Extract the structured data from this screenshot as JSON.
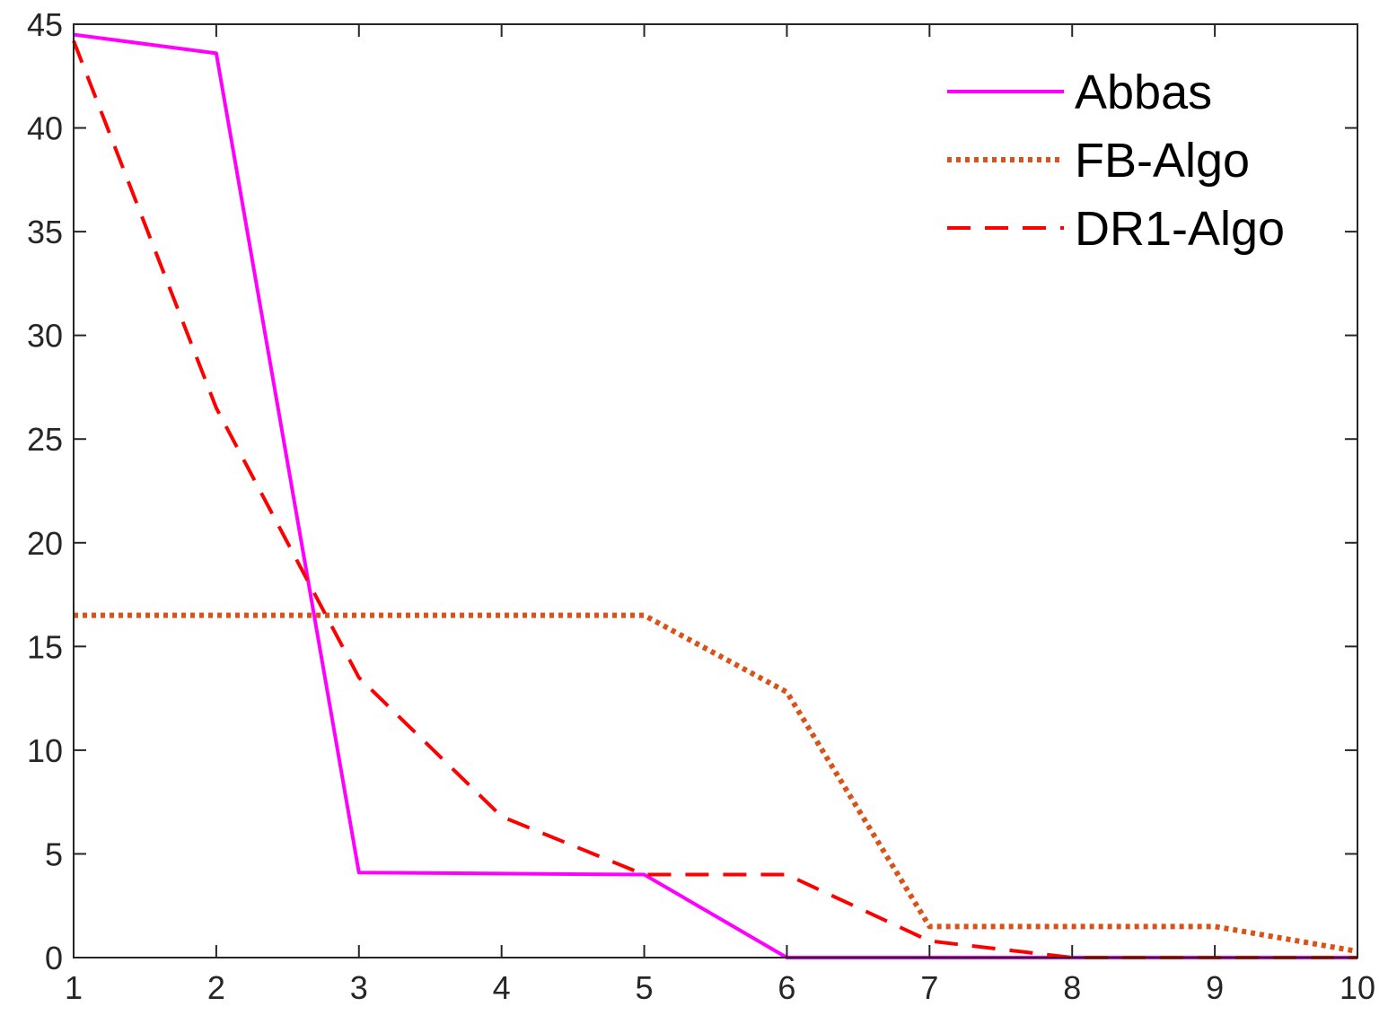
{
  "chart_data": {
    "type": "line",
    "title": "",
    "xlabel": "",
    "ylabel": "",
    "x": [
      1,
      2,
      3,
      4,
      5,
      6,
      7,
      8,
      9,
      10
    ],
    "xlim": [
      1,
      10
    ],
    "ylim": [
      0,
      45
    ],
    "xticks": [
      "1",
      "2",
      "3",
      "4",
      "5",
      "6",
      "7",
      "8",
      "9",
      "10"
    ],
    "yticks": [
      "0",
      "5",
      "10",
      "15",
      "20",
      "25",
      "30",
      "35",
      "40",
      "45"
    ],
    "grid": false,
    "legend_position": "top-right",
    "series": [
      {
        "name": "Abbas",
        "color": "#ff00ff",
        "style": "solid",
        "values": [
          44.5,
          43.6,
          4.1,
          4.05,
          4.0,
          0,
          0,
          0,
          0,
          0
        ]
      },
      {
        "name": "FB-Algo",
        "color": "#d95319",
        "style": "dotted",
        "values": [
          16.5,
          16.5,
          16.5,
          16.5,
          16.5,
          12.8,
          1.5,
          1.5,
          1.5,
          0.3
        ]
      },
      {
        "name": "DR1-Algo",
        "color": "#ff0000",
        "style": "dashed",
        "values": [
          44.2,
          26.5,
          13.5,
          6.8,
          4.0,
          4.0,
          0.8,
          0,
          0,
          0
        ]
      }
    ]
  }
}
